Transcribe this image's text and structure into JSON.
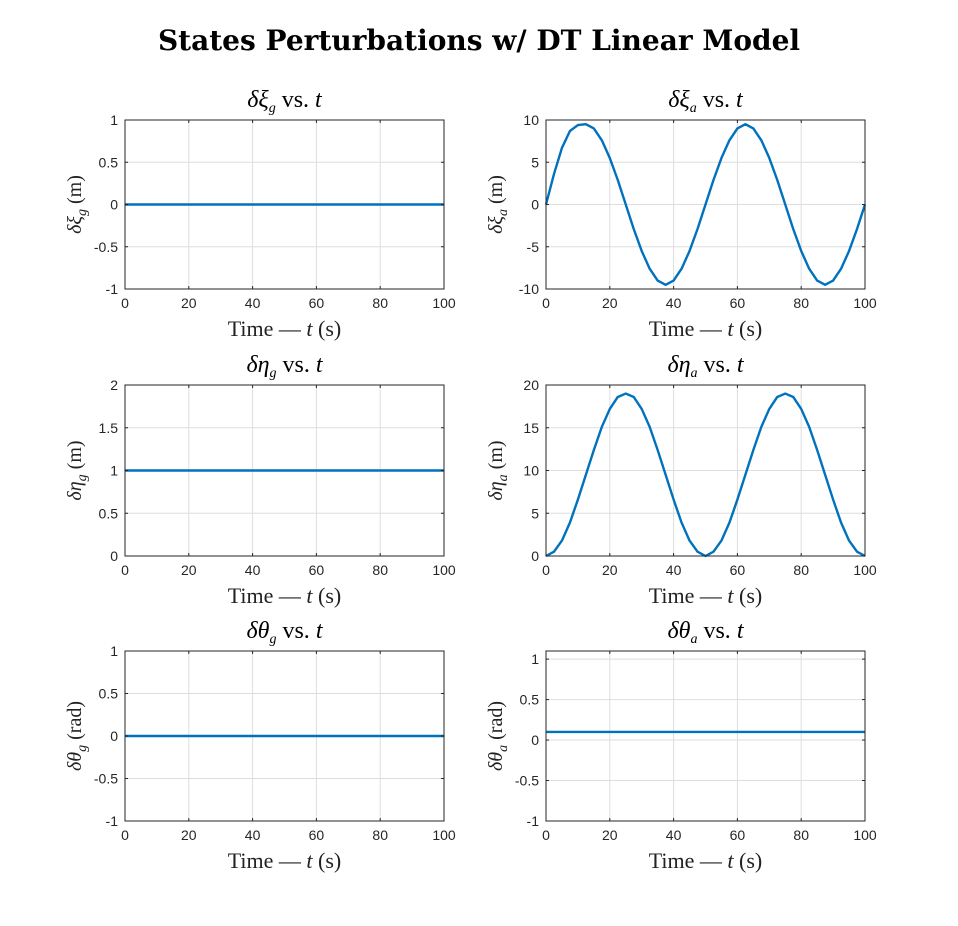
{
  "figure": {
    "title": "States Perturbations w/ DT Linear Model"
  },
  "chart_data": [
    {
      "type": "line",
      "title": "δξg vs. t",
      "title_parts": {
        "sym": "δξ",
        "sub": "g",
        "rest": " vs. ",
        "var": "t"
      },
      "xlabel": "Time — t (s)",
      "xlabel_parts": {
        "pre": "Time — ",
        "var": "t",
        "post": " (s)"
      },
      "ylabel": "δξg (m)",
      "ylabel_parts": {
        "sym": "δξ",
        "sub": "g",
        "unit": " (m)"
      },
      "xlim": [
        0,
        100
      ],
      "ylim": [
        -1,
        1
      ],
      "xticks": [
        0,
        20,
        40,
        60,
        80,
        100
      ],
      "yticks": [
        -1,
        -0.5,
        0,
        0.5,
        1
      ],
      "ytick_labels": [
        "-1",
        "-0.5",
        "0",
        "0.5",
        "1"
      ],
      "grid": true,
      "series": [
        {
          "x": [
            0,
            100
          ],
          "y": [
            0,
            0
          ],
          "color": "#0072bd"
        }
      ]
    },
    {
      "type": "line",
      "title": "δξa vs. t",
      "title_parts": {
        "sym": "δξ",
        "sub": "a",
        "rest": " vs. ",
        "var": "t"
      },
      "xlabel": "Time — t (s)",
      "xlabel_parts": {
        "pre": "Time — ",
        "var": "t",
        "post": " (s)"
      },
      "ylabel": "δξa (m)",
      "ylabel_parts": {
        "sym": "δξ",
        "sub": "a",
        "unit": " (m)"
      },
      "xlim": [
        0,
        100
      ],
      "ylim": [
        -10,
        10
      ],
      "xticks": [
        0,
        20,
        40,
        60,
        80,
        100
      ],
      "yticks": [
        -10,
        -5,
        0,
        5,
        10
      ],
      "ytick_labels": [
        "-10",
        "-5",
        "0",
        "5",
        "10"
      ],
      "grid": true,
      "series": [
        {
          "x": [
            0,
            2.5,
            5,
            7.5,
            10,
            12.5,
            15,
            17.5,
            20,
            22.5,
            25,
            27.5,
            30,
            32.5,
            35,
            37.5,
            40,
            42.5,
            45,
            47.5,
            50,
            52.5,
            55,
            57.5,
            60,
            62.5,
            65,
            67.5,
            70,
            72.5,
            75,
            77.5,
            80,
            82.5,
            85,
            87.5,
            90,
            92.5,
            95,
            97.5,
            100
          ],
          "y": [
            0,
            3.6,
            6.7,
            8.7,
            9.4,
            9.5,
            9.0,
            7.6,
            5.5,
            2.9,
            0,
            -2.9,
            -5.5,
            -7.6,
            -9.0,
            -9.5,
            -9.0,
            -7.6,
            -5.5,
            -2.9,
            0,
            2.9,
            5.5,
            7.6,
            9.0,
            9.5,
            9.0,
            7.6,
            5.5,
            2.9,
            0,
            -2.9,
            -5.5,
            -7.6,
            -9.0,
            -9.5,
            -9.0,
            -7.6,
            -5.5,
            -2.9,
            0
          ],
          "color": "#0072bd"
        }
      ]
    },
    {
      "type": "line",
      "title": "δηg vs. t",
      "title_parts": {
        "sym": "δη",
        "sub": "g",
        "rest": " vs. ",
        "var": "t"
      },
      "xlabel": "Time — t (s)",
      "xlabel_parts": {
        "pre": "Time — ",
        "var": "t",
        "post": " (s)"
      },
      "ylabel": "δηg (m)",
      "ylabel_parts": {
        "sym": "δη",
        "sub": "g",
        "unit": " (m)"
      },
      "xlim": [
        0,
        100
      ],
      "ylim": [
        0,
        2
      ],
      "xticks": [
        0,
        20,
        40,
        60,
        80,
        100
      ],
      "yticks": [
        0,
        0.5,
        1,
        1.5,
        2
      ],
      "ytick_labels": [
        "0",
        "0.5",
        "1",
        "1.5",
        "2"
      ],
      "grid": true,
      "series": [
        {
          "x": [
            0,
            100
          ],
          "y": [
            1,
            1
          ],
          "color": "#0072bd"
        }
      ]
    },
    {
      "type": "line",
      "title": "δηa vs. t",
      "title_parts": {
        "sym": "δη",
        "sub": "a",
        "rest": " vs. ",
        "var": "t"
      },
      "xlabel": "Time — t (s)",
      "xlabel_parts": {
        "pre": "Time — ",
        "var": "t",
        "post": " (s)"
      },
      "ylabel": "δηa (m)",
      "ylabel_parts": {
        "sym": "δη",
        "sub": "a",
        "unit": " (m)"
      },
      "xlim": [
        0,
        100
      ],
      "ylim": [
        0,
        20
      ],
      "xticks": [
        0,
        20,
        40,
        60,
        80,
        100
      ],
      "yticks": [
        0,
        5,
        10,
        15,
        20
      ],
      "ytick_labels": [
        "0",
        "5",
        "10",
        "15",
        "20"
      ],
      "grid": true,
      "series": [
        {
          "x": [
            0,
            2.5,
            5,
            7.5,
            10,
            12.5,
            15,
            17.5,
            20,
            22.5,
            25,
            27.5,
            30,
            32.5,
            35,
            37.5,
            40,
            42.5,
            45,
            47.5,
            50,
            52.5,
            55,
            57.5,
            60,
            62.5,
            65,
            67.5,
            70,
            72.5,
            75,
            77.5,
            80,
            82.5,
            85,
            87.5,
            90,
            92.5,
            95,
            97.5,
            100
          ],
          "y": [
            0,
            0.5,
            1.8,
            3.9,
            6.6,
            9.5,
            12.4,
            15.1,
            17.2,
            18.6,
            19.0,
            18.6,
            17.2,
            15.1,
            12.4,
            9.5,
            6.6,
            3.9,
            1.8,
            0.5,
            0,
            0.5,
            1.8,
            3.9,
            6.6,
            9.5,
            12.4,
            15.1,
            17.2,
            18.6,
            19.0,
            18.6,
            17.2,
            15.1,
            12.4,
            9.5,
            6.6,
            3.9,
            1.8,
            0.5,
            0
          ],
          "color": "#0072bd"
        }
      ]
    },
    {
      "type": "line",
      "title": "δθg vs. t",
      "title_parts": {
        "sym": "δθ",
        "sub": "g",
        "rest": " vs. ",
        "var": "t"
      },
      "xlabel": "Time — t (s)",
      "xlabel_parts": {
        "pre": "Time — ",
        "var": "t",
        "post": " (s)"
      },
      "ylabel": "δθg (rad)",
      "ylabel_parts": {
        "sym": "δθ",
        "sub": "g",
        "unit": " (rad)"
      },
      "xlim": [
        0,
        100
      ],
      "ylim": [
        -1,
        1
      ],
      "xticks": [
        0,
        20,
        40,
        60,
        80,
        100
      ],
      "yticks": [
        -1,
        -0.5,
        0,
        0.5,
        1
      ],
      "ytick_labels": [
        "-1",
        "-0.5",
        "0",
        "0.5",
        "1"
      ],
      "grid": true,
      "series": [
        {
          "x": [
            0,
            100
          ],
          "y": [
            0,
            0
          ],
          "color": "#0072bd"
        }
      ]
    },
    {
      "type": "line",
      "title": "δθa vs. t",
      "title_parts": {
        "sym": "δθ",
        "sub": "a",
        "rest": " vs. ",
        "var": "t"
      },
      "xlabel": "Time — t (s)",
      "xlabel_parts": {
        "pre": "Time — ",
        "var": "t",
        "post": " (s)"
      },
      "ylabel": "δθa (rad)",
      "ylabel_parts": {
        "sym": "δθ",
        "sub": "a",
        "unit": " (rad)"
      },
      "xlim": [
        0,
        100
      ],
      "ylim": [
        -1,
        1.1
      ],
      "xticks": [
        0,
        20,
        40,
        60,
        80,
        100
      ],
      "yticks": [
        -1,
        -0.5,
        0,
        0.5,
        1
      ],
      "ytick_labels": [
        "-1",
        "-0.5",
        "0",
        "0.5",
        "1"
      ],
      "grid": true,
      "series": [
        {
          "x": [
            0,
            100
          ],
          "y": [
            0.1,
            0.1
          ],
          "color": "#0072bd"
        }
      ]
    }
  ]
}
